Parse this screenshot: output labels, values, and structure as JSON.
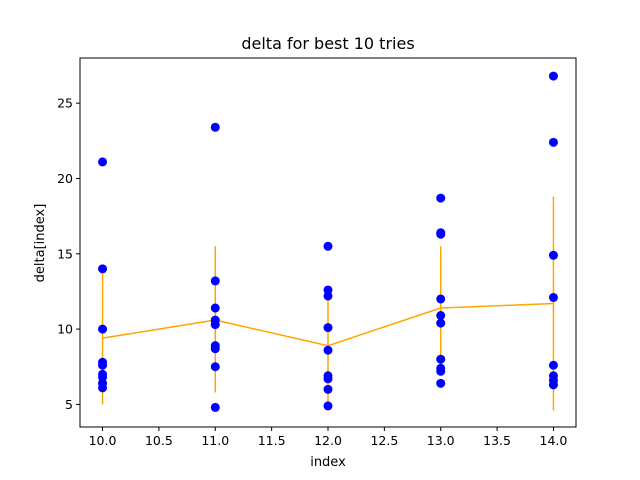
{
  "chart_data": {
    "type": "scatter",
    "title": "delta for best 10 tries",
    "xlabel": "index",
    "ylabel": "delta[index]",
    "xlim": [
      9.8,
      14.2
    ],
    "ylim": [
      3.5,
      28.0
    ],
    "xticks": [
      10.0,
      10.5,
      11.0,
      11.5,
      12.0,
      12.5,
      13.0,
      13.5,
      14.0
    ],
    "xtick_labels": [
      "10.0",
      "10.5",
      "11.0",
      "11.5",
      "12.0",
      "12.5",
      "13.0",
      "13.5",
      "14.0"
    ],
    "yticks": [
      5,
      10,
      15,
      20,
      25
    ],
    "ytick_labels": [
      "5",
      "10",
      "15",
      "20",
      "25"
    ],
    "grid": false,
    "colors": {
      "points": "#0000ff",
      "line": "#ffa500"
    },
    "points": [
      {
        "x": 10,
        "y": [
          21.1,
          14.0,
          10.0,
          7.8,
          7.6,
          7.0,
          6.8,
          6.4,
          6.1
        ]
      },
      {
        "x": 11,
        "y": [
          23.4,
          13.2,
          11.4,
          10.6,
          10.3,
          8.9,
          8.7,
          7.5,
          4.8
        ]
      },
      {
        "x": 12,
        "y": [
          15.5,
          12.6,
          12.2,
          10.1,
          8.6,
          6.9,
          6.7,
          6.0,
          4.9
        ]
      },
      {
        "x": 13,
        "y": [
          18.7,
          16.4,
          16.3,
          12.0,
          10.9,
          10.4,
          8.0,
          7.4,
          7.2,
          6.4
        ]
      },
      {
        "x": 14,
        "y": [
          26.8,
          22.4,
          14.9,
          12.1,
          7.6,
          6.9,
          6.6,
          6.3
        ]
      }
    ],
    "mean_line": {
      "x": [
        10,
        11,
        12,
        13,
        14
      ],
      "y": [
        9.4,
        10.6,
        8.9,
        11.4,
        11.7
      ]
    },
    "error_bars": [
      {
        "x": 10,
        "low": 5.0,
        "high": 13.8
      },
      {
        "x": 11,
        "low": 5.8,
        "high": 15.5
      },
      {
        "x": 12,
        "low": 5.2,
        "high": 12.6
      },
      {
        "x": 13,
        "low": 7.3,
        "high": 15.5
      },
      {
        "x": 14,
        "low": 4.6,
        "high": 18.8
      }
    ]
  }
}
